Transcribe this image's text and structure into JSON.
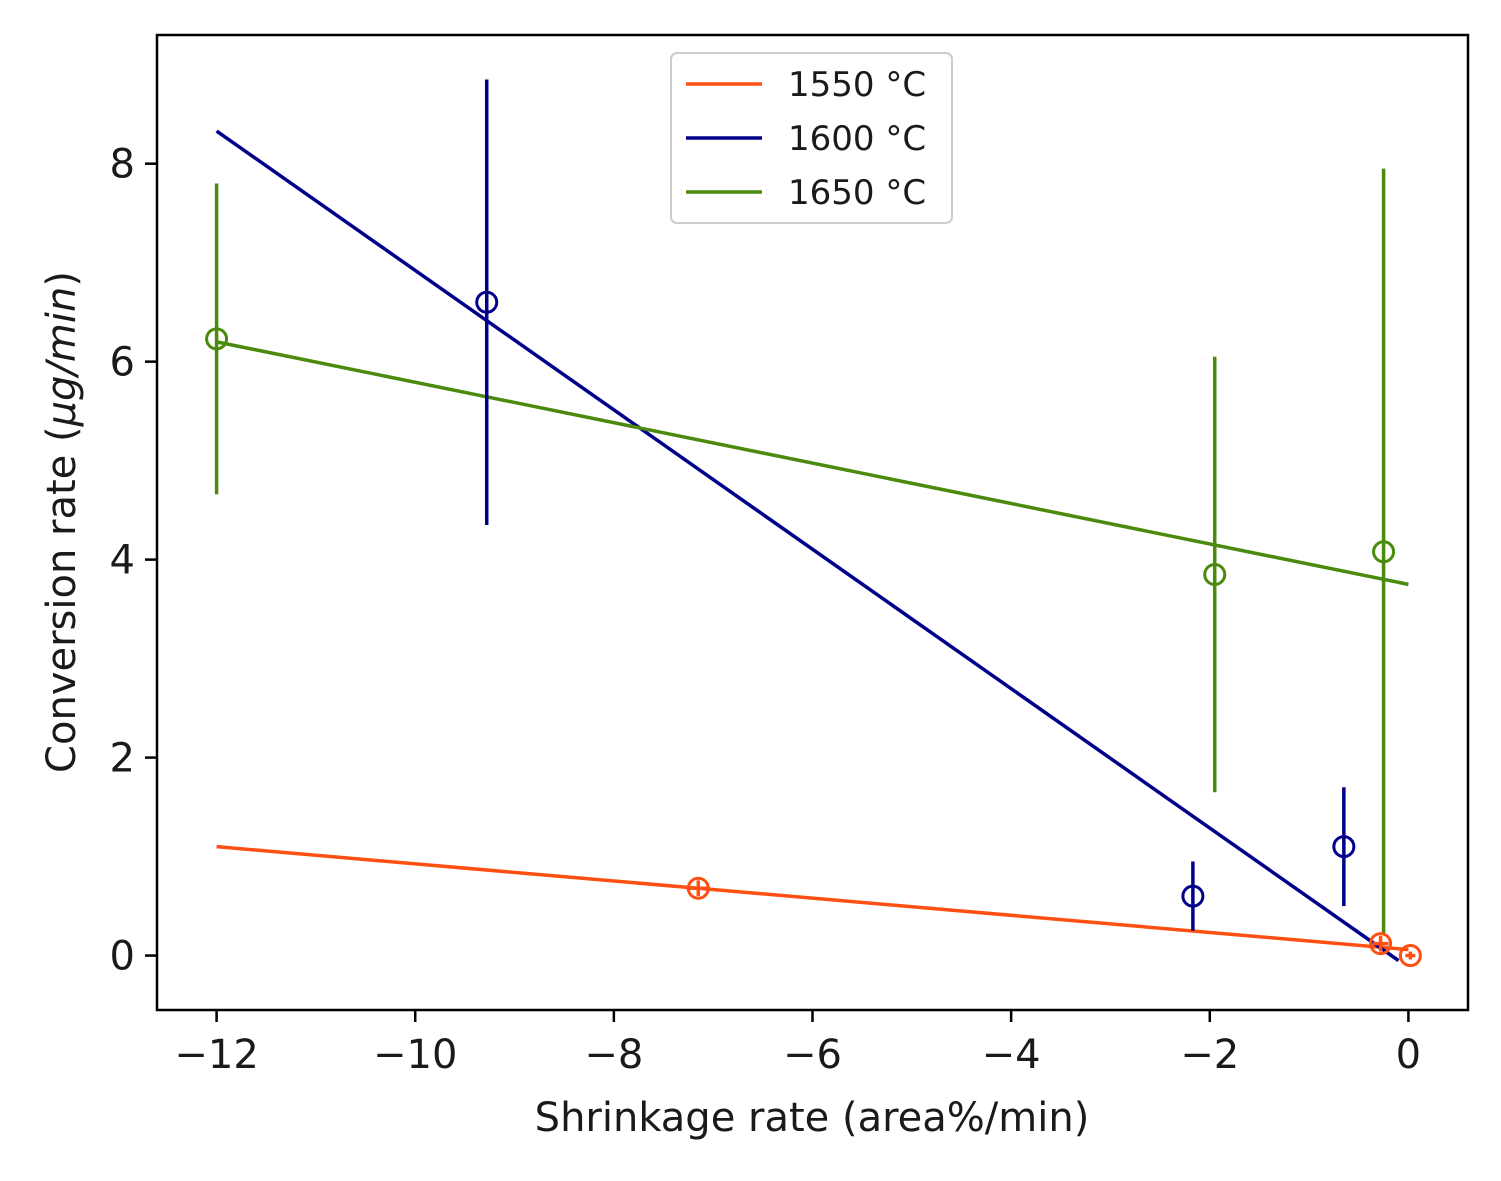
{
  "chart_data": {
    "type": "scatter",
    "title": "",
    "xlabel": "Shrinkage rate (area%/min)",
    "ylabel_prefix": "Conversion rate (",
    "ylabel_unit": "μg/min",
    "ylabel_suffix": ")",
    "xlim": [
      -12.6,
      0.6
    ],
    "ylim": [
      -0.55,
      9.3
    ],
    "xticks": [
      -12,
      -10,
      -8,
      -6,
      -4,
      -2,
      0
    ],
    "xtick_labels": [
      "−12",
      "−10",
      "−8",
      "−6",
      "−4",
      "−2",
      "0"
    ],
    "yticks": [
      0,
      2,
      4,
      6,
      8
    ],
    "ytick_labels": [
      "0",
      "2",
      "4",
      "6",
      "8"
    ],
    "grid": false,
    "legend_position": "top-center",
    "series": [
      {
        "name": "1550 °C",
        "color": "#ff4f12",
        "points": [
          {
            "x": -7.15,
            "y": 0.68,
            "yerr": 0.08,
            "xerr": 0.12
          },
          {
            "x": -0.28,
            "y": 0.12,
            "yerr": 0.08,
            "xerr": 0.08
          },
          {
            "x": 0.02,
            "y": 0.0,
            "yerr": 0.04,
            "xerr": 0.05
          }
        ],
        "fit": {
          "x": [
            -12.0,
            0.0
          ],
          "y": [
            1.1,
            0.06
          ]
        }
      },
      {
        "name": "1600 °C",
        "color": "#00008b",
        "points": [
          {
            "x": -9.28,
            "y": 6.6,
            "yerr": 2.25,
            "xerr": 0
          },
          {
            "x": -2.17,
            "y": 0.6,
            "yerr": 0.35,
            "xerr": 0
          },
          {
            "x": -0.65,
            "y": 1.1,
            "yerr": 0.6,
            "xerr": 0
          }
        ],
        "fit": {
          "x": [
            -12.0,
            -0.1
          ],
          "y": [
            8.33,
            -0.05
          ]
        }
      },
      {
        "name": "1650 °C",
        "color": "#4a8a0c",
        "points": [
          {
            "x": -12.0,
            "y": 6.23,
            "yerr": 1.57,
            "xerr": 0
          },
          {
            "x": -1.95,
            "y": 3.85,
            "yerr": 2.2,
            "xerr": 0
          },
          {
            "x": -0.25,
            "y": 4.08,
            "yerr": 3.87,
            "xerr": 0
          }
        ],
        "fit": {
          "x": [
            -12.0,
            0.0
          ],
          "y": [
            6.2,
            3.75
          ]
        }
      }
    ]
  }
}
